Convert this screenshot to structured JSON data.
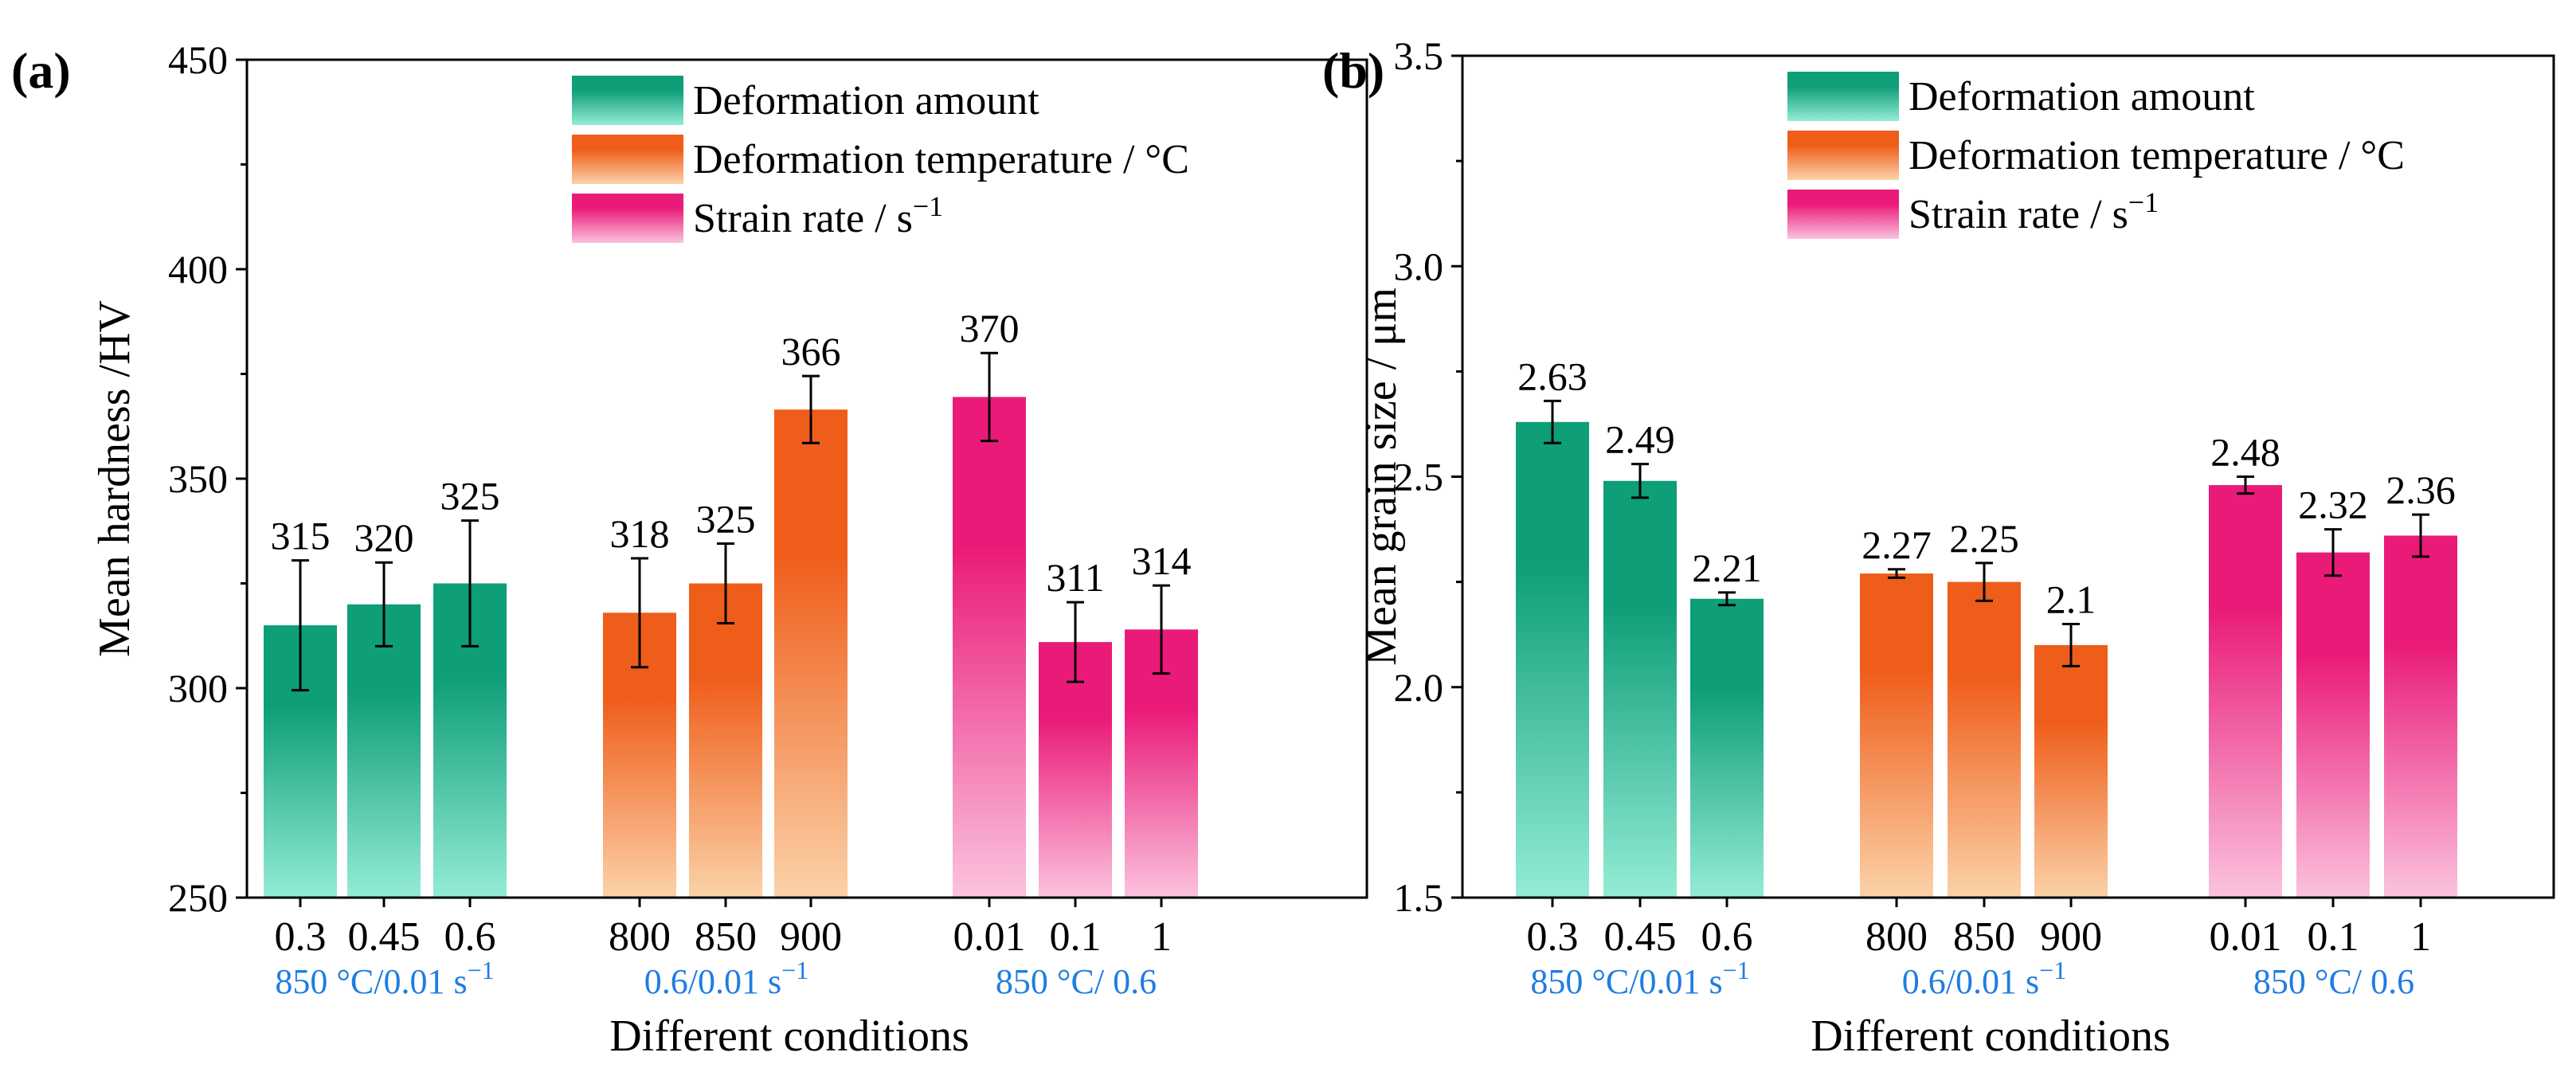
{
  "figure": {
    "legend": [
      {
        "key": "deformation_amount",
        "label": "Deformation amount"
      },
      {
        "key": "deformation_temperature",
        "label": "Deformation temperature / °C"
      },
      {
        "key": "strain_rate",
        "label": "Strain rate / s",
        "superscript": "−1"
      }
    ],
    "groups": [
      {
        "key": "deformation_amount",
        "categories": [
          "0.3",
          "0.45",
          "0.6"
        ],
        "condition_label": "850 °C/0.01 s",
        "condition_sup": "−1",
        "condition_color": "#1f7de0",
        "color_top": "#0e9e78",
        "color_bottom": "#94ecd6"
      },
      {
        "key": "deformation_temperature",
        "categories": [
          "800",
          "850",
          "900"
        ],
        "condition_label": "0.6/0.01 s",
        "condition_sup": "−1",
        "condition_color": "#1f7de0",
        "color_top": "#ef5d1a",
        "color_bottom": "#fbd2a9"
      },
      {
        "key": "strain_rate",
        "categories": [
          "0.01",
          "0.1",
          "1"
        ],
        "condition_label": "850 °C/ 0.6",
        "condition_sup": "",
        "condition_color": "#1f7de0",
        "color_top": "#ea1b78",
        "color_bottom": "#fbc3df"
      }
    ]
  },
  "chart_data": [
    {
      "type": "bar",
      "panel_label": "(a)",
      "title": "",
      "xlabel": "Different conditions",
      "ylabel": "Mean hardness /HV",
      "ylim": [
        250,
        450
      ],
      "yticks": [
        250,
        300,
        350,
        400,
        450
      ],
      "ytick_labels": [
        "250",
        "300",
        "350",
        "400",
        "450"
      ],
      "series": [
        {
          "name": "Deformation amount",
          "categories": [
            "0.3",
            "0.45",
            "0.6"
          ],
          "values": [
            315,
            320,
            325
          ],
          "errors": [
            15.5,
            10,
            15
          ],
          "labels": [
            "315",
            "320",
            "325"
          ]
        },
        {
          "name": "Deformation temperature / °C",
          "categories": [
            "800",
            "850",
            "900"
          ],
          "values": [
            318,
            325,
            366.5
          ],
          "errors": [
            13,
            9.5,
            8
          ],
          "labels": [
            "318",
            "325",
            "366"
          ]
        },
        {
          "name": "Strain rate / s−1",
          "categories": [
            "0.01",
            "0.1",
            "1"
          ],
          "values": [
            369.5,
            311,
            314
          ],
          "errors": [
            10.5,
            9.5,
            10.5
          ],
          "labels": [
            "370",
            "311",
            "314"
          ]
        }
      ],
      "legend_position": "top-right"
    },
    {
      "type": "bar",
      "panel_label": "(b)",
      "title": "",
      "xlabel": "Different conditions",
      "ylabel": "Mean grain size / μm",
      "ylim": [
        1.5,
        3.5
      ],
      "yticks": [
        1.5,
        2.0,
        2.5,
        3.0,
        3.5
      ],
      "ytick_labels": [
        "1.5",
        "2.0",
        "2.5",
        "3.0",
        "3.5"
      ],
      "series": [
        {
          "name": "Deformation amount",
          "categories": [
            "0.3",
            "0.45",
            "0.6"
          ],
          "values": [
            2.63,
            2.49,
            2.21
          ],
          "errors": [
            0.05,
            0.04,
            0.015
          ],
          "labels": [
            "2.63",
            "2.49",
            "2.21"
          ]
        },
        {
          "name": "Deformation temperature / °C",
          "categories": [
            "800",
            "850",
            "900"
          ],
          "values": [
            2.27,
            2.25,
            2.1
          ],
          "errors": [
            0.01,
            0.045,
            0.05
          ],
          "labels": [
            "2.27",
            "2.25",
            "2.1"
          ]
        },
        {
          "name": "Strain rate / s−1",
          "categories": [
            "0.01",
            "0.1",
            "1"
          ],
          "values": [
            2.48,
            2.32,
            2.36
          ],
          "errors": [
            0.02,
            0.055,
            0.05
          ],
          "labels": [
            "2.48",
            "2.32",
            "2.36"
          ]
        }
      ],
      "legend_position": "top-right"
    }
  ]
}
